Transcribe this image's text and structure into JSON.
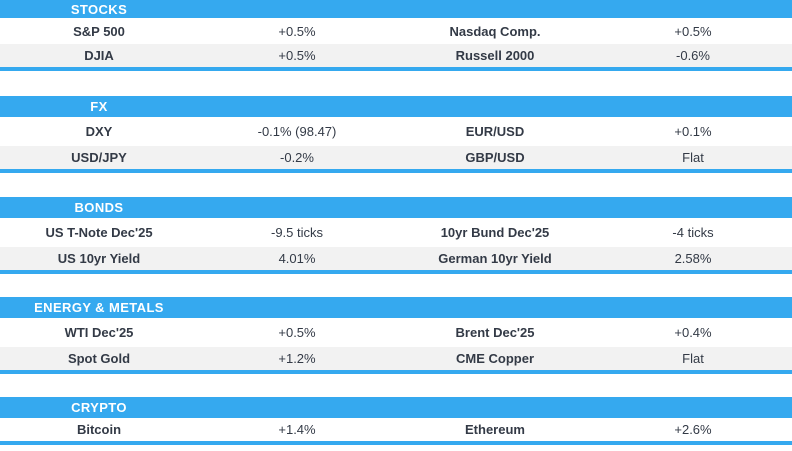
{
  "colors": {
    "header_bar": "#35A9EF",
    "underline": "#35A9EF",
    "row_alt_background": "#F2F2F2",
    "row_background": "#FFFFFF",
    "text": "#333A46",
    "header_text": "#FFFFFF"
  },
  "sections": [
    {
      "title": "STOCKS",
      "rows": [
        {
          "cells": [
            "S&P 500",
            "+0.5%",
            "Nasdaq Comp.",
            "+0.5%"
          ]
        },
        {
          "cells": [
            "DJIA",
            "+0.5%",
            "Russell 2000",
            "-0.6%"
          ]
        }
      ]
    },
    {
      "title": "FX",
      "rows": [
        {
          "cells": [
            "DXY",
            "-0.1% (98.47)",
            "EUR/USD",
            "+0.1%"
          ]
        },
        {
          "cells": [
            "USD/JPY",
            "-0.2%",
            "GBP/USD",
            "Flat"
          ]
        }
      ]
    },
    {
      "title": "BONDS",
      "rows": [
        {
          "cells": [
            "US T-Note Dec'25",
            "-9.5 ticks",
            "10yr Bund Dec'25",
            "-4 ticks"
          ]
        },
        {
          "cells": [
            "US 10yr Yield",
            "4.01%",
            "German 10yr Yield",
            "2.58%"
          ]
        }
      ]
    },
    {
      "title": "ENERGY & METALS",
      "rows": [
        {
          "cells": [
            "WTI Dec'25",
            "+0.5%",
            "Brent Dec'25",
            "+0.4%"
          ]
        },
        {
          "cells": [
            "Spot Gold",
            "+1.2%",
            "CME Copper",
            "Flat"
          ]
        }
      ]
    },
    {
      "title": "CRYPTO",
      "rows": [
        {
          "cells": [
            "Bitcoin",
            "+1.4%",
            "Ethereum",
            "+2.6%"
          ]
        }
      ]
    }
  ]
}
